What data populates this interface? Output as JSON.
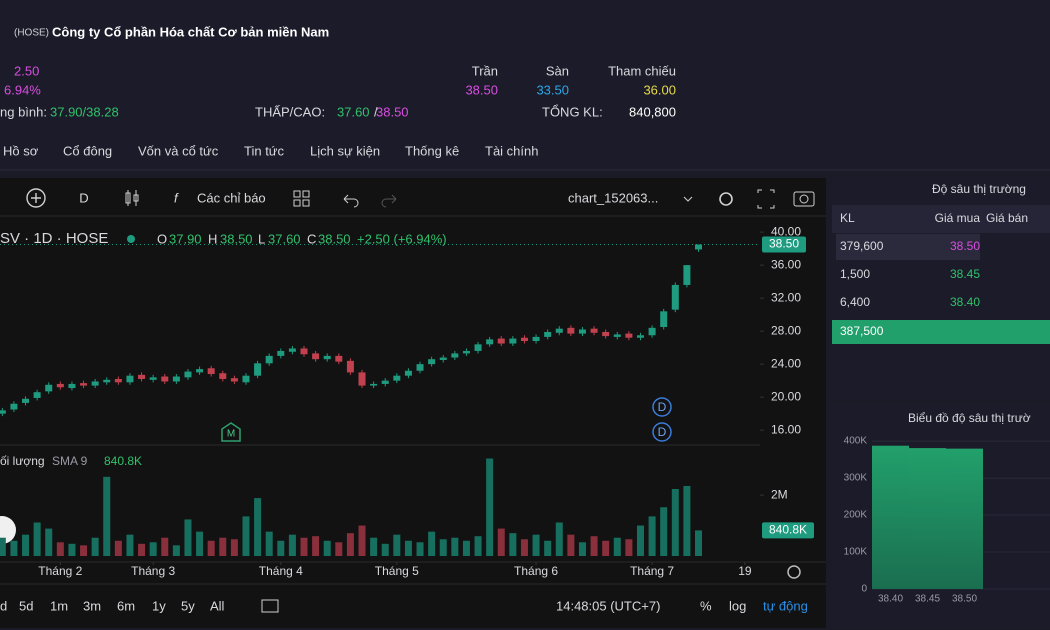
{
  "header": {
    "exchange": "(HOSE)",
    "company": "Công ty Cổ phần Hóa chất Cơ bản miền Nam",
    "change": "2.50",
    "change_pct": "6.94%",
    "avg_label": "ng bình:",
    "avg_value": "37.90/38.28",
    "lowhigh_label": "THẤP/CAO:",
    "low": "37.60",
    "sep": "/",
    "high": "38.50",
    "ceiling_label": "Trần",
    "ceiling": "38.50",
    "floor_label": "Sàn",
    "floor": "33.50",
    "ref_label": "Tham chiếu",
    "ref": "36.00",
    "volume_label": "TỔNG KL:",
    "volume": "840,800"
  },
  "tabs": [
    "Hồ sơ",
    "Cổ đông",
    "Vốn và cổ tức",
    "Tin tức",
    "Lịch sự kiện",
    "Thống kê",
    "Tài chính"
  ],
  "toolbar": {
    "interval": "D",
    "indicators": "Các chỉ báo",
    "layout": "chart_152063..."
  },
  "legend": {
    "symbol": "SV · 1D · HOSE",
    "o_label": "O",
    "o": "37.90",
    "h_label": "H",
    "h": "38.50",
    "l_label": "L",
    "l": "37.60",
    "c_label": "C",
    "c": "38.50",
    "change": "+2.50 (+6.94%)"
  },
  "markers": [
    "D",
    "D",
    "M"
  ],
  "chart_data": [
    {
      "type": "candlestick",
      "open": [
        18.0,
        18.5,
        19.3,
        19.9,
        20.7,
        21.6,
        21.1,
        21.7,
        21.4,
        21.8,
        22.2,
        21.8,
        22.7,
        22.1,
        22.5,
        21.9,
        22.4,
        23.0,
        23.5,
        22.9,
        22.3,
        21.8,
        22.6,
        24.1,
        25.0,
        25.5,
        25.9,
        25.3,
        24.6,
        25.0,
        24.4,
        23.0,
        21.4,
        21.6,
        22.0,
        22.6,
        23.2,
        24.0,
        24.5,
        24.8,
        25.3,
        25.6,
        26.4,
        27.1,
        26.5,
        27.2,
        26.8,
        27.3,
        27.8,
        28.4,
        27.7,
        28.3,
        27.9,
        27.3,
        27.7,
        27.2,
        27.5,
        28.5,
        30.6,
        33.6,
        37.9
      ],
      "high": [
        18.7,
        19.5,
        20.1,
        20.9,
        21.8,
        21.9,
        21.9,
        22.0,
        22.2,
        22.4,
        22.5,
        22.9,
        23.0,
        22.7,
        22.8,
        22.8,
        23.4,
        23.7,
        23.8,
        23.2,
        22.6,
        22.9,
        24.4,
        25.3,
        25.9,
        26.2,
        26.2,
        25.6,
        25.3,
        25.3,
        24.7,
        23.3,
        21.9,
        22.3,
        22.9,
        23.5,
        24.3,
        24.9,
        25.1,
        25.6,
        25.9,
        26.7,
        27.3,
        27.4,
        27.4,
        27.5,
        27.6,
        28.2,
        28.6,
        28.7,
        28.5,
        28.6,
        28.2,
        27.9,
        28.0,
        27.8,
        28.7,
        30.7,
        33.9,
        36.0,
        38.5
      ],
      "low": [
        17.7,
        18.2,
        19.0,
        19.6,
        20.4,
        20.9,
        20.8,
        21.1,
        21.1,
        21.5,
        21.5,
        21.5,
        21.9,
        21.8,
        21.6,
        21.6,
        22.1,
        22.7,
        22.5,
        21.9,
        21.6,
        21.5,
        22.3,
        23.8,
        24.7,
        25.2,
        24.9,
        24.3,
        24.3,
        24.0,
        22.7,
        21.1,
        21.1,
        21.3,
        21.7,
        22.3,
        22.9,
        23.7,
        24.2,
        24.5,
        25.0,
        25.3,
        26.1,
        26.2,
        26.2,
        26.5,
        26.5,
        27.0,
        27.5,
        27.4,
        27.4,
        27.5,
        27.1,
        27.0,
        26.9,
        26.9,
        27.2,
        28.2,
        30.3,
        33.3,
        37.6
      ],
      "close": [
        18.4,
        19.2,
        19.8,
        20.6,
        21.5,
        21.2,
        21.6,
        21.4,
        21.9,
        22.1,
        21.8,
        22.6,
        22.2,
        22.4,
        21.9,
        22.5,
        23.1,
        23.4,
        22.8,
        22.2,
        21.9,
        22.6,
        24.1,
        25.0,
        25.6,
        25.9,
        25.2,
        24.6,
        25.0,
        24.3,
        23.0,
        21.4,
        21.6,
        22.0,
        22.6,
        23.2,
        24.0,
        24.6,
        24.8,
        25.3,
        25.6,
        26.4,
        27.0,
        26.5,
        27.1,
        26.8,
        27.3,
        27.9,
        28.3,
        27.7,
        28.2,
        27.8,
        27.4,
        27.6,
        27.2,
        27.5,
        28.4,
        30.4,
        33.6,
        36.0,
        38.5
      ],
      "price_tag": "38.50",
      "xlim": [
        -0.2,
        65.3
      ],
      "xticks": [
        {
          "value": 5,
          "label": "Tháng 2"
        },
        {
          "value": 13,
          "label": "Tháng 3"
        },
        {
          "value": 24,
          "label": "Tháng 4"
        },
        {
          "value": 34,
          "label": "Tháng 5"
        },
        {
          "value": 46,
          "label": "Tháng 6"
        },
        {
          "value": 56,
          "label": "Tháng 7"
        },
        {
          "value": 64,
          "label": "19"
        }
      ],
      "ylim": [
        14.2,
        40.5
      ],
      "yticks": [
        {
          "value": 16,
          "label": "16.00"
        },
        {
          "value": 20,
          "label": "20.00"
        },
        {
          "value": 24,
          "label": "24.00"
        },
        {
          "value": 28,
          "label": "28.00"
        },
        {
          "value": 32,
          "label": "32.00"
        },
        {
          "value": 36,
          "label": "36.00"
        },
        {
          "value": 40,
          "label": "40.00"
        }
      ],
      "up_color": "#1f9c80",
      "down_color": "#c2414f"
    },
    {
      "type": "bar",
      "title": "ối lượng",
      "subtitle": "SMA 9",
      "current_label": "840.8K",
      "values": [
        600000,
        500000,
        700000,
        1100000,
        900000,
        450000,
        400000,
        350000,
        600000,
        2600000,
        500000,
        700000,
        400000,
        450000,
        600000,
        350000,
        1200000,
        800000,
        500000,
        600000,
        550000,
        1300000,
        1900000,
        800000,
        500000,
        700000,
        600000,
        650000,
        500000,
        450000,
        750000,
        1000000,
        600000,
        400000,
        700000,
        500000,
        450000,
        800000,
        550000,
        600000,
        500000,
        650000,
        3200000,
        900000,
        750000,
        550000,
        700000,
        500000,
        1100000,
        700000,
        450000,
        650000,
        500000,
        600000,
        550000,
        1000000,
        1300000,
        1600000,
        2200000,
        2300000,
        840800
      ],
      "ylim": [
        0,
        3480000
      ],
      "yticks": [
        {
          "value": 2000000,
          "label": "2M"
        }
      ]
    },
    {
      "type": "bar",
      "title": "Biểu đồ độ sâu thị trườ",
      "categories": [
        "38.40",
        "38.45",
        "38.50"
      ],
      "values": [
        387500,
        381100,
        379600
      ],
      "color": "#22a06b",
      "ylim": [
        0,
        430000
      ],
      "yticks": [
        0,
        {
          "value": 100000,
          "label": "100K"
        },
        {
          "value": 200000,
          "label": "200K"
        },
        {
          "value": 300000,
          "label": "300K"
        },
        {
          "value": 400000,
          "label": "400K"
        }
      ]
    }
  ],
  "orderbook": {
    "title": "Độ sâu thị trường",
    "headers": [
      "KL",
      "Giá mua",
      "Giá bán"
    ],
    "rows": [
      [
        "379,600",
        "38.50"
      ],
      [
        "1,500",
        "38.45"
      ],
      [
        "6,400",
        "38.40"
      ]
    ],
    "total": "387,500"
  },
  "range_buttons": [
    "d",
    "5d",
    "1m",
    "3m",
    "6m",
    "1y",
    "5y",
    "All"
  ],
  "clock": "14:48:05 (UTC+7)",
  "scale_buttons": [
    "%",
    "log",
    "tự động"
  ]
}
